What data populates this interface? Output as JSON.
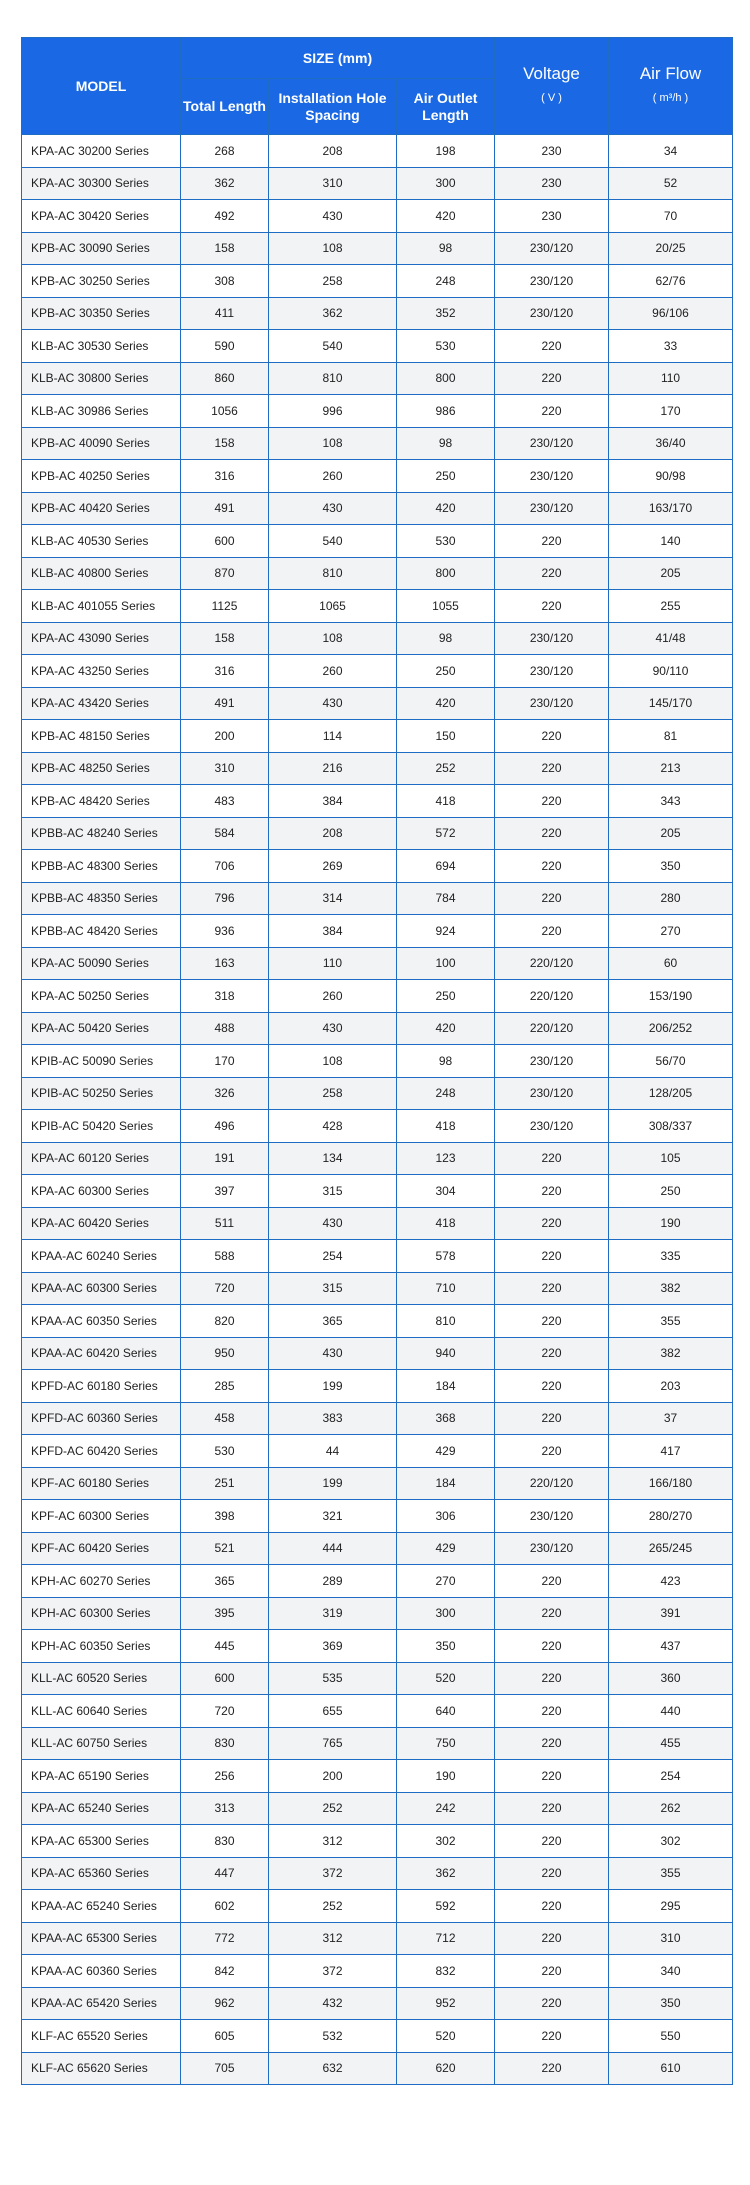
{
  "header": {
    "model": "MODEL",
    "size": "SIZE (mm)",
    "total_length": "Total Length",
    "hole_spacing": "Installation Hole Spacing",
    "outlet_length": "Air Outlet Length",
    "voltage": "Voltage",
    "voltage_unit": "( V )",
    "airflow": "Air Flow",
    "airflow_unit": "( m³/h )"
  },
  "colors": {
    "header_bg": "#1a68e3",
    "border": "#1f6cc4",
    "alt_row": "#f2f3f5"
  },
  "rows": [
    [
      "KPA-AC 30200 Series",
      "268",
      "208",
      "198",
      "230",
      "34"
    ],
    [
      "KPA-AC 30300 Series",
      "362",
      "310",
      "300",
      "230",
      "52"
    ],
    [
      "KPA-AC 30420 Series",
      "492",
      "430",
      "420",
      "230",
      "70"
    ],
    [
      "KPB-AC 30090 Series",
      "158",
      "108",
      "98",
      "230/120",
      "20/25"
    ],
    [
      "KPB-AC 30250 Series",
      "308",
      "258",
      "248",
      "230/120",
      "62/76"
    ],
    [
      "KPB-AC 30350 Series",
      "411",
      "362",
      "352",
      "230/120",
      "96/106"
    ],
    [
      "KLB-AC 30530 Series",
      "590",
      "540",
      "530",
      "220",
      "33"
    ],
    [
      "KLB-AC 30800 Series",
      "860",
      "810",
      "800",
      "220",
      "110"
    ],
    [
      "KLB-AC 30986 Series",
      "1056",
      "996",
      "986",
      "220",
      "170"
    ],
    [
      "KPB-AC 40090 Series",
      "158",
      "108",
      "98",
      "230/120",
      "36/40"
    ],
    [
      "KPB-AC 40250 Series",
      "316",
      "260",
      "250",
      "230/120",
      "90/98"
    ],
    [
      "KPB-AC 40420 Series",
      "491",
      "430",
      "420",
      "230/120",
      "163/170"
    ],
    [
      "KLB-AC 40530 Series",
      "600",
      "540",
      "530",
      "220",
      "140"
    ],
    [
      "KLB-AC 40800 Series",
      "870",
      "810",
      "800",
      "220",
      "205"
    ],
    [
      "KLB-AC 401055 Series",
      "1125",
      "1065",
      "1055",
      "220",
      "255"
    ],
    [
      "KPA-AC 43090 Series",
      "158",
      "108",
      "98",
      "230/120",
      "41/48"
    ],
    [
      "KPA-AC 43250 Series",
      "316",
      "260",
      "250",
      "230/120",
      "90/110"
    ],
    [
      "KPA-AC 43420 Series",
      "491",
      "430",
      "420",
      "230/120",
      "145/170"
    ],
    [
      "KPB-AC 48150 Series",
      "200",
      "114",
      "150",
      "220",
      "81"
    ],
    [
      "KPB-AC 48250 Series",
      "310",
      "216",
      "252",
      "220",
      "213"
    ],
    [
      "KPB-AC 48420 Series",
      "483",
      "384",
      "418",
      "220",
      "343"
    ],
    [
      "KPBB-AC 48240 Series",
      "584",
      "208",
      "572",
      "220",
      "205"
    ],
    [
      "KPBB-AC 48300 Series",
      "706",
      "269",
      "694",
      "220",
      "350"
    ],
    [
      "KPBB-AC 48350 Series",
      "796",
      "314",
      "784",
      "220",
      "280"
    ],
    [
      "KPBB-AC 48420 Series",
      "936",
      "384",
      "924",
      "220",
      "270"
    ],
    [
      "KPA-AC 50090 Series",
      "163",
      "110",
      "100",
      "220/120",
      "60"
    ],
    [
      "KPA-AC 50250 Series",
      "318",
      "260",
      "250",
      "220/120",
      "153/190"
    ],
    [
      "KPA-AC 50420 Series",
      "488",
      "430",
      "420",
      "220/120",
      "206/252"
    ],
    [
      "KPIB-AC 50090 Series",
      "170",
      "108",
      "98",
      "230/120",
      "56/70"
    ],
    [
      "KPIB-AC 50250 Series",
      "326",
      "258",
      "248",
      "230/120",
      "128/205"
    ],
    [
      "KPIB-AC 50420 Series",
      "496",
      "428",
      "418",
      "230/120",
      "308/337"
    ],
    [
      "KPA-AC 60120 Series",
      "191",
      "134",
      "123",
      "220",
      "105"
    ],
    [
      "KPA-AC 60300 Series",
      "397",
      "315",
      "304",
      "220",
      "250"
    ],
    [
      "KPA-AC 60420 Series",
      "511",
      "430",
      "418",
      "220",
      "190"
    ],
    [
      "KPAA-AC 60240 Series",
      "588",
      "254",
      "578",
      "220",
      "335"
    ],
    [
      "KPAA-AC 60300 Series",
      "720",
      "315",
      "710",
      "220",
      "382"
    ],
    [
      "KPAA-AC 60350 Series",
      "820",
      "365",
      "810",
      "220",
      "355"
    ],
    [
      "KPAA-AC 60420 Series",
      "950",
      "430",
      "940",
      "220",
      "382"
    ],
    [
      "KPFD-AC 60180 Series",
      "285",
      "199",
      "184",
      "220",
      "203"
    ],
    [
      "KPFD-AC 60360 Series",
      "458",
      "383",
      "368",
      "220",
      "37"
    ],
    [
      "KPFD-AC 60420 Series",
      "530",
      "44",
      "429",
      "220",
      "417"
    ],
    [
      "KPF-AC 60180 Series",
      "251",
      "199",
      "184",
      "220/120",
      "166/180"
    ],
    [
      "KPF-AC 60300 Series",
      "398",
      "321",
      "306",
      "230/120",
      "280/270"
    ],
    [
      "KPF-AC 60420 Series",
      "521",
      "444",
      "429",
      "230/120",
      "265/245"
    ],
    [
      "KPH-AC 60270 Series",
      "365",
      "289",
      "270",
      "220",
      "423"
    ],
    [
      "KPH-AC 60300 Series",
      "395",
      "319",
      "300",
      "220",
      "391"
    ],
    [
      "KPH-AC 60350 Series",
      "445",
      "369",
      "350",
      "220",
      "437"
    ],
    [
      "KLL-AC 60520 Series",
      "600",
      "535",
      "520",
      "220",
      "360"
    ],
    [
      "KLL-AC 60640 Series",
      "720",
      "655",
      "640",
      "220",
      "440"
    ],
    [
      "KLL-AC 60750 Series",
      "830",
      "765",
      "750",
      "220",
      "455"
    ],
    [
      "KPA-AC 65190 Series",
      "256",
      "200",
      "190",
      "220",
      "254"
    ],
    [
      "KPA-AC 65240 Series",
      "313",
      "252",
      "242",
      "220",
      "262"
    ],
    [
      "KPA-AC 65300 Series",
      "830",
      "312",
      "302",
      "220",
      "302"
    ],
    [
      "KPA-AC 65360 Series",
      "447",
      "372",
      "362",
      "220",
      "355"
    ],
    [
      "KPAA-AC 65240 Series",
      "602",
      "252",
      "592",
      "220",
      "295"
    ],
    [
      "KPAA-AC 65300 Series",
      "772",
      "312",
      "712",
      "220",
      "310"
    ],
    [
      "KPAA-AC 60360 Series",
      "842",
      "372",
      "832",
      "220",
      "340"
    ],
    [
      "KPAA-AC 65420 Series",
      "962",
      "432",
      "952",
      "220",
      "350"
    ],
    [
      "KLF-AC 65520 Series",
      "605",
      "532",
      "520",
      "220",
      "550"
    ],
    [
      "KLF-AC 65620 Series",
      "705",
      "632",
      "620",
      "220",
      "610"
    ]
  ]
}
